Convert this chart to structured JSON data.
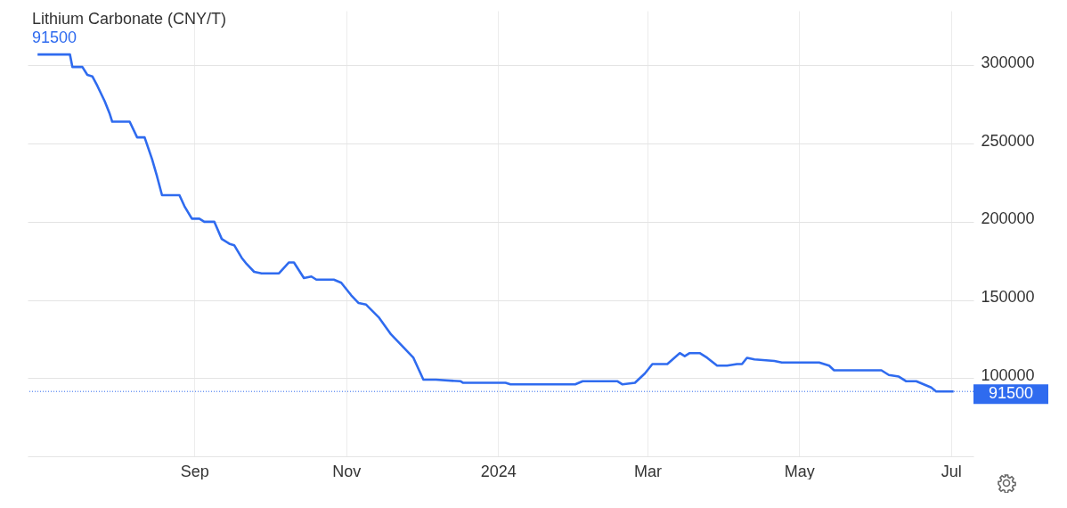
{
  "chart_data": {
    "type": "line",
    "title": "Lithium Carbonate (CNY/T)",
    "subtitle": "91500",
    "series": [
      {
        "color": "#2f6bef",
        "x": [
          "2023-06-30",
          "2023-07-13",
          "2023-07-14",
          "2023-07-18",
          "2023-07-20",
          "2023-07-22",
          "2023-07-24",
          "2023-07-27",
          "2023-07-29",
          "2023-07-30",
          "2023-08-06",
          "2023-08-09",
          "2023-08-12",
          "2023-08-15",
          "2023-08-17",
          "2023-08-19",
          "2023-08-26",
          "2023-08-28",
          "2023-08-31",
          "2023-09-03",
          "2023-09-05",
          "2023-09-09",
          "2023-09-12",
          "2023-09-15",
          "2023-09-17",
          "2023-09-20",
          "2023-09-22",
          "2023-09-25",
          "2023-09-28",
          "2023-10-05",
          "2023-10-09",
          "2023-10-11",
          "2023-10-15",
          "2023-10-18",
          "2023-10-20",
          "2023-10-27",
          "2023-10-30",
          "2023-11-03",
          "2023-11-06",
          "2023-11-09",
          "2023-11-14",
          "2023-11-19",
          "2023-11-28",
          "2023-12-02",
          "2023-12-07",
          "2023-12-17",
          "2023-12-18",
          "2024-01-04",
          "2024-01-06",
          "2024-02-01",
          "2024-02-04",
          "2024-02-18",
          "2024-02-20",
          "2024-02-25",
          "2024-02-29",
          "2024-03-03",
          "2024-03-09",
          "2024-03-14",
          "2024-03-16",
          "2024-03-18",
          "2024-03-22",
          "2024-03-25",
          "2024-03-29",
          "2024-04-02",
          "2024-04-06",
          "2024-04-08",
          "2024-04-10",
          "2024-04-13",
          "2024-04-21",
          "2024-04-24",
          "2024-05-09",
          "2024-05-13",
          "2024-05-15",
          "2024-06-03",
          "2024-06-06",
          "2024-06-10",
          "2024-06-13",
          "2024-06-17",
          "2024-06-23",
          "2024-06-25",
          "2024-07-02"
        ],
        "values": [
          307000,
          307000,
          299000,
          299000,
          294000,
          293000,
          287000,
          277000,
          269000,
          264000,
          264000,
          254000,
          254000,
          240000,
          229000,
          217000,
          217000,
          210000,
          202000,
          202000,
          200000,
          200000,
          189000,
          186000,
          185000,
          177000,
          173000,
          168000,
          167000,
          167000,
          174000,
          174000,
          164000,
          165000,
          163000,
          163000,
          161000,
          153000,
          148000,
          147000,
          139000,
          128000,
          113000,
          99000,
          99000,
          98000,
          97000,
          97000,
          96000,
          96000,
          98000,
          98000,
          96000,
          97000,
          103000,
          109000,
          109000,
          116000,
          114000,
          116000,
          116000,
          113000,
          108000,
          108000,
          109000,
          109000,
          113000,
          112000,
          111000,
          110000,
          110000,
          108000,
          105000,
          105000,
          102000,
          101000,
          98000,
          98000,
          94000,
          91500,
          91500
        ]
      }
    ],
    "xlim": [
      "2023-06-26",
      "2024-07-10"
    ],
    "xticks": [
      {
        "value": "2023-09-01",
        "label": "Sep"
      },
      {
        "value": "2023-11-01",
        "label": "Nov"
      },
      {
        "value": "2024-01-01",
        "label": "2024"
      },
      {
        "value": "2024-03-01",
        "label": "Mar"
      },
      {
        "value": "2024-05-01",
        "label": "May"
      },
      {
        "value": "2024-07-01",
        "label": "Jul"
      }
    ],
    "ylim": [
      50000,
      335000
    ],
    "yticks": [
      100000,
      150000,
      200000,
      250000,
      300000
    ],
    "ref_lines": [
      {
        "axis": "y",
        "value": 91500,
        "label": "91500",
        "color": "#2f6bef",
        "line_style": "dotted"
      }
    ],
    "grid": true,
    "line_style": "solid",
    "marker": "none"
  }
}
